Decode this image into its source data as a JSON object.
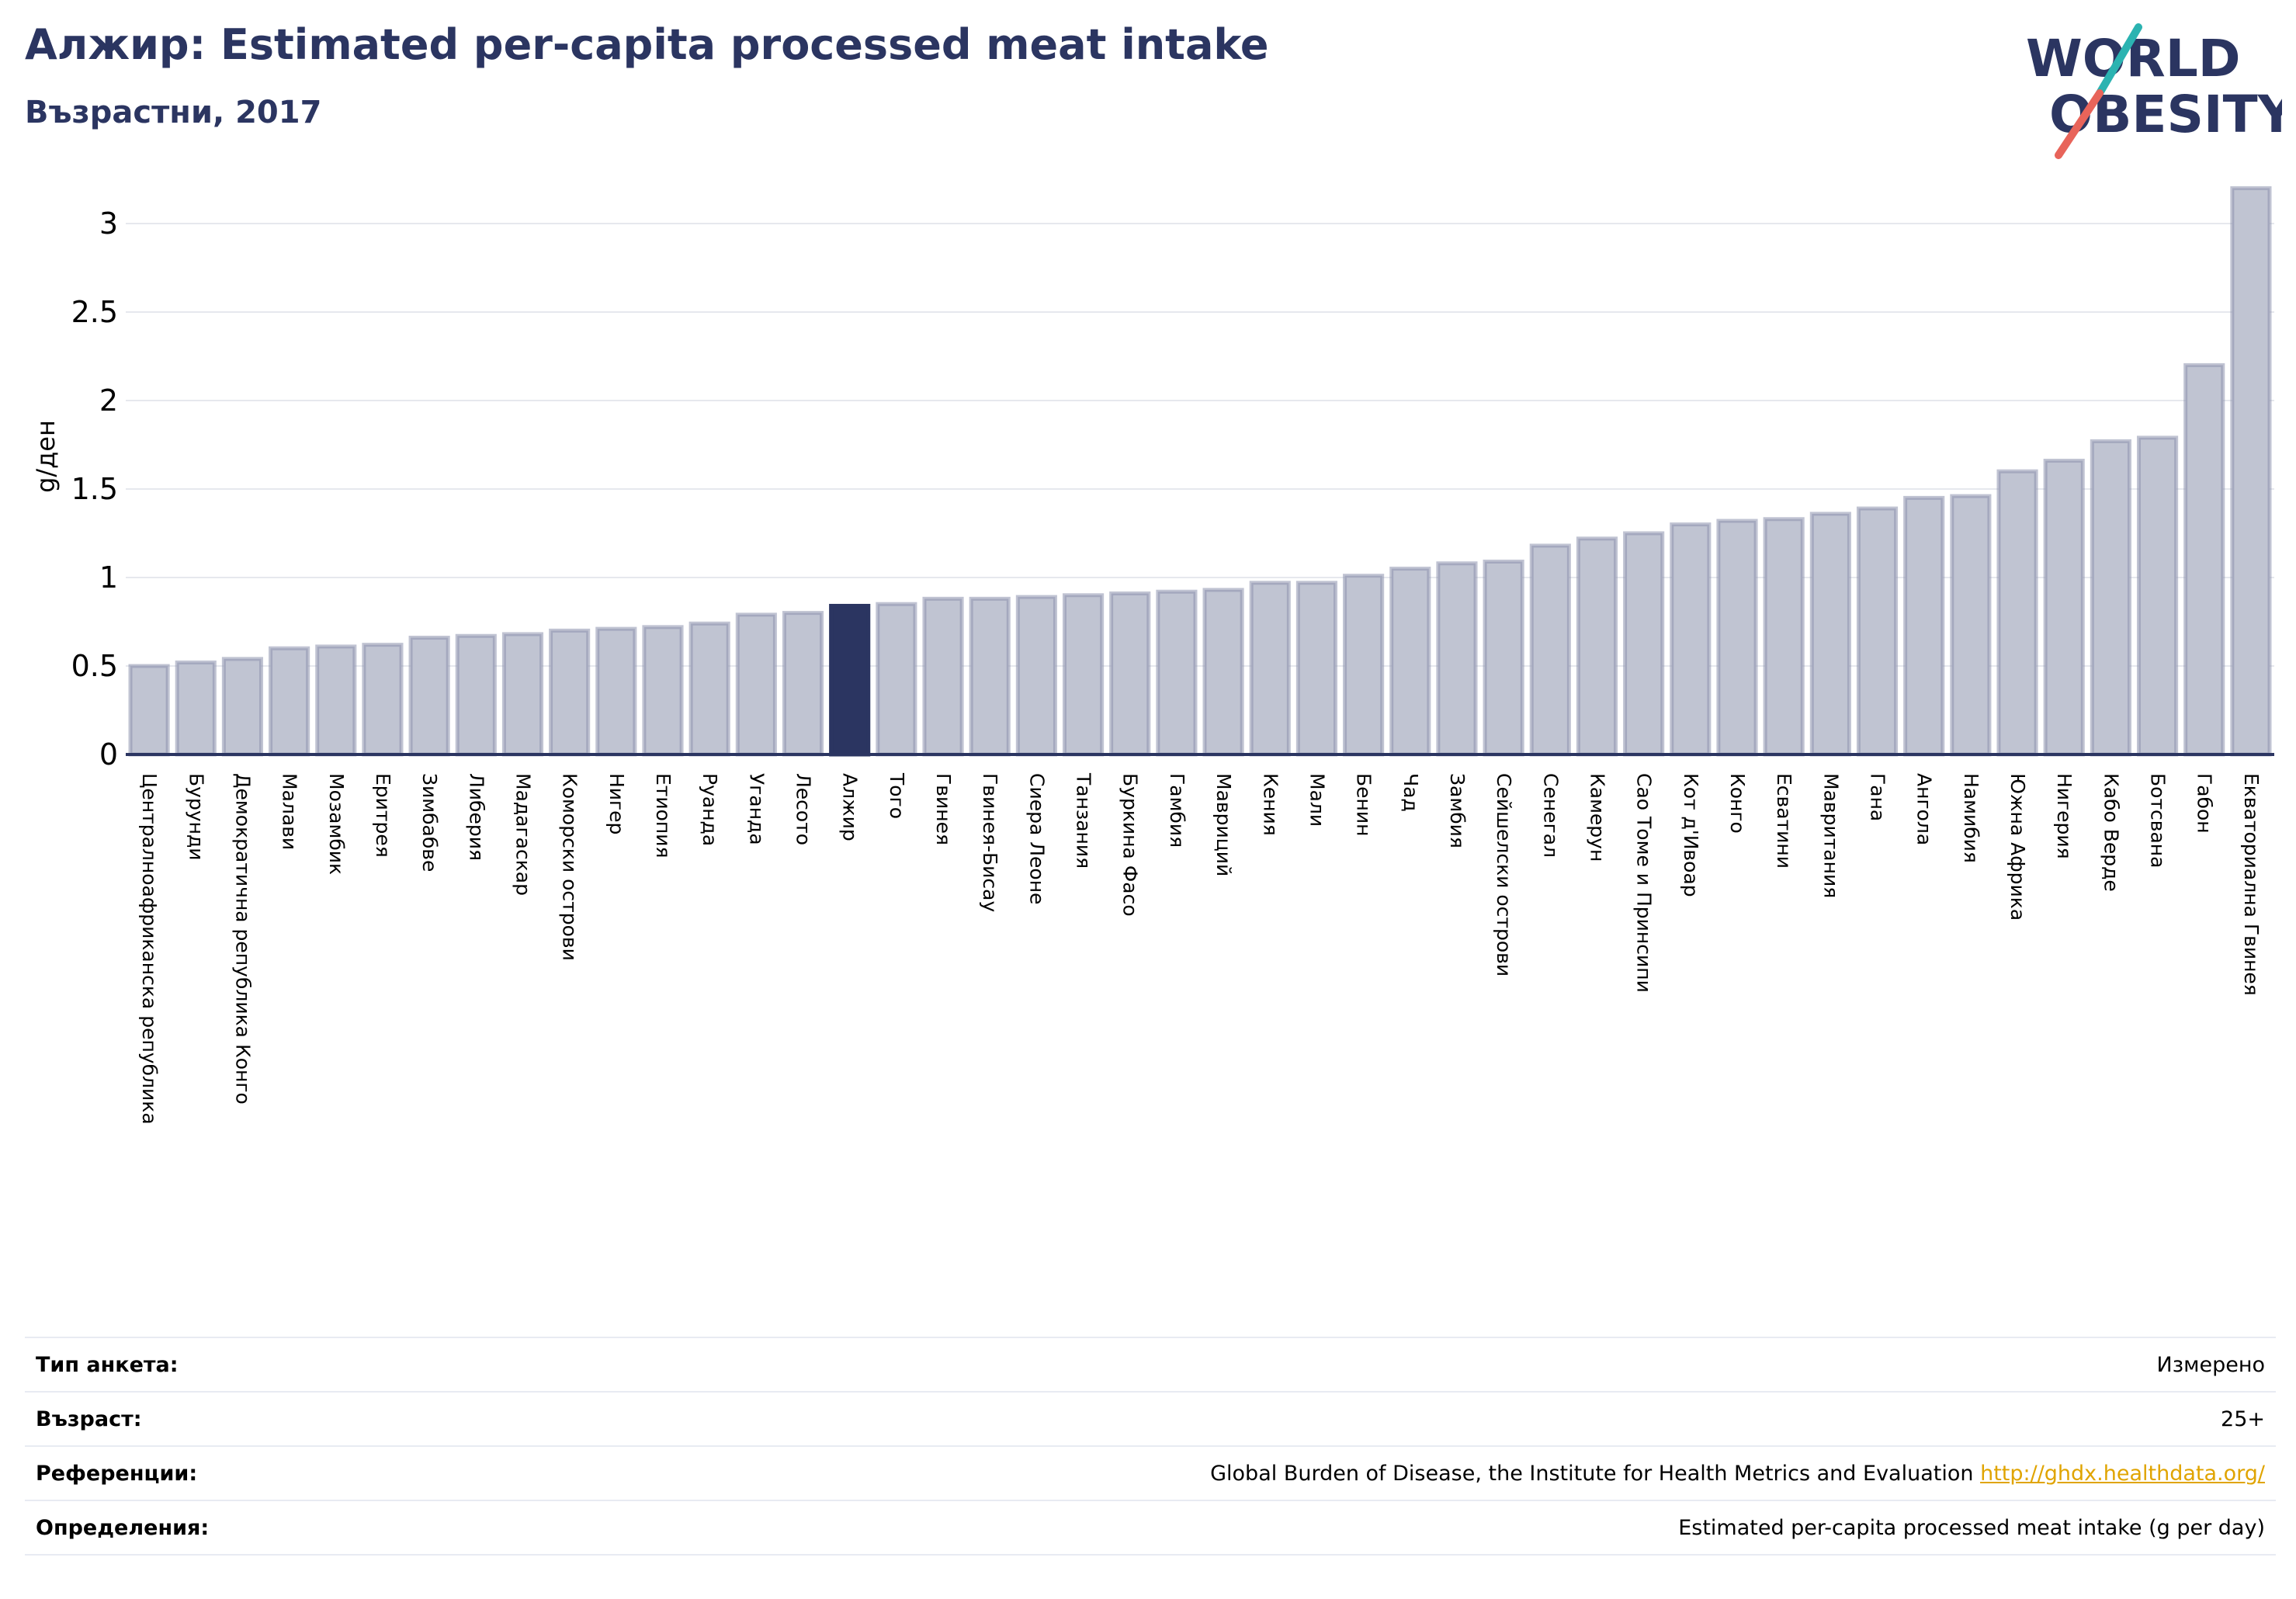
{
  "header": {
    "title": "Алжир: Estimated per-capita processed meat intake",
    "subtitle": "Възрастни, 2017"
  },
  "logo": {
    "line1": "WORLD",
    "line2": "OBESITY",
    "colors": {
      "text": "#2b3561",
      "accent_teal": "#2bb3b1",
      "accent_red": "#e8645a"
    }
  },
  "chart_data": {
    "type": "bar",
    "ylabel": "g/ден",
    "xlabel": "",
    "ylim": [
      0,
      3.25
    ],
    "yticks": [
      0,
      0.5,
      1,
      1.5,
      2,
      2.5,
      3
    ],
    "ytick_labels": [
      "0",
      "0.5",
      "1",
      "1.5",
      "2",
      "2.5",
      "3"
    ],
    "grid": true,
    "highlight": "Алжир",
    "colors": {
      "bar": "#c0c4d2",
      "bar_edge": "#8c91ad",
      "highlight": "#2b3561",
      "grid": "#e6e8ee",
      "axis": "#2b3561"
    },
    "categories": [
      "Централноафриканска република",
      "Бурунди",
      "Демократична република Конго",
      "Малави",
      "Мозамбик",
      "Еритрея",
      "Зимбабве",
      "Либерия",
      "Мадагаскар",
      "Коморски острови",
      "Нигер",
      "Етиопия",
      "Руанда",
      "Уганда",
      "Лесото",
      "Алжир",
      "Того",
      "Гвинея",
      "Гвинея-Бисау",
      "Сиера Леоне",
      "Танзания",
      "Буркина Фасо",
      "Гамбия",
      "Мавриций",
      "Кения",
      "Мали",
      "Бенин",
      "Чад",
      "Замбия",
      "Сейшелски острови",
      "Сенегал",
      "Камерун",
      "Сао Томе и Принсипи",
      "Кот д'Ивоар",
      "Конго",
      "Есватини",
      "Мавритания",
      "Гана",
      "Ангола",
      "Намибия",
      "Южна Африка",
      "Нигерия",
      "Кабо Верде",
      "Ботсвана",
      "Габон",
      "Екваториална Гвинея"
    ],
    "values": [
      0.5,
      0.52,
      0.54,
      0.6,
      0.61,
      0.62,
      0.66,
      0.67,
      0.68,
      0.7,
      0.71,
      0.72,
      0.74,
      0.79,
      0.8,
      0.84,
      0.85,
      0.88,
      0.88,
      0.89,
      0.9,
      0.91,
      0.92,
      0.93,
      0.97,
      0.97,
      1.01,
      1.05,
      1.08,
      1.09,
      1.18,
      1.22,
      1.25,
      1.3,
      1.32,
      1.33,
      1.36,
      1.39,
      1.45,
      1.46,
      1.6,
      1.66,
      1.77,
      1.79,
      2.2,
      3.2
    ]
  },
  "info": [
    {
      "key": "Тип анкета:",
      "value": "Измерено"
    },
    {
      "key": "Възраст:",
      "value": "25+"
    },
    {
      "key": "Референции:",
      "value": "Global Burden of Disease, the Institute for Health Metrics and Evaluation",
      "link": "http://ghdx.healthdata.org/"
    },
    {
      "key": "Определения:",
      "value": "Estimated per-capita processed meat intake (g per day)"
    }
  ]
}
